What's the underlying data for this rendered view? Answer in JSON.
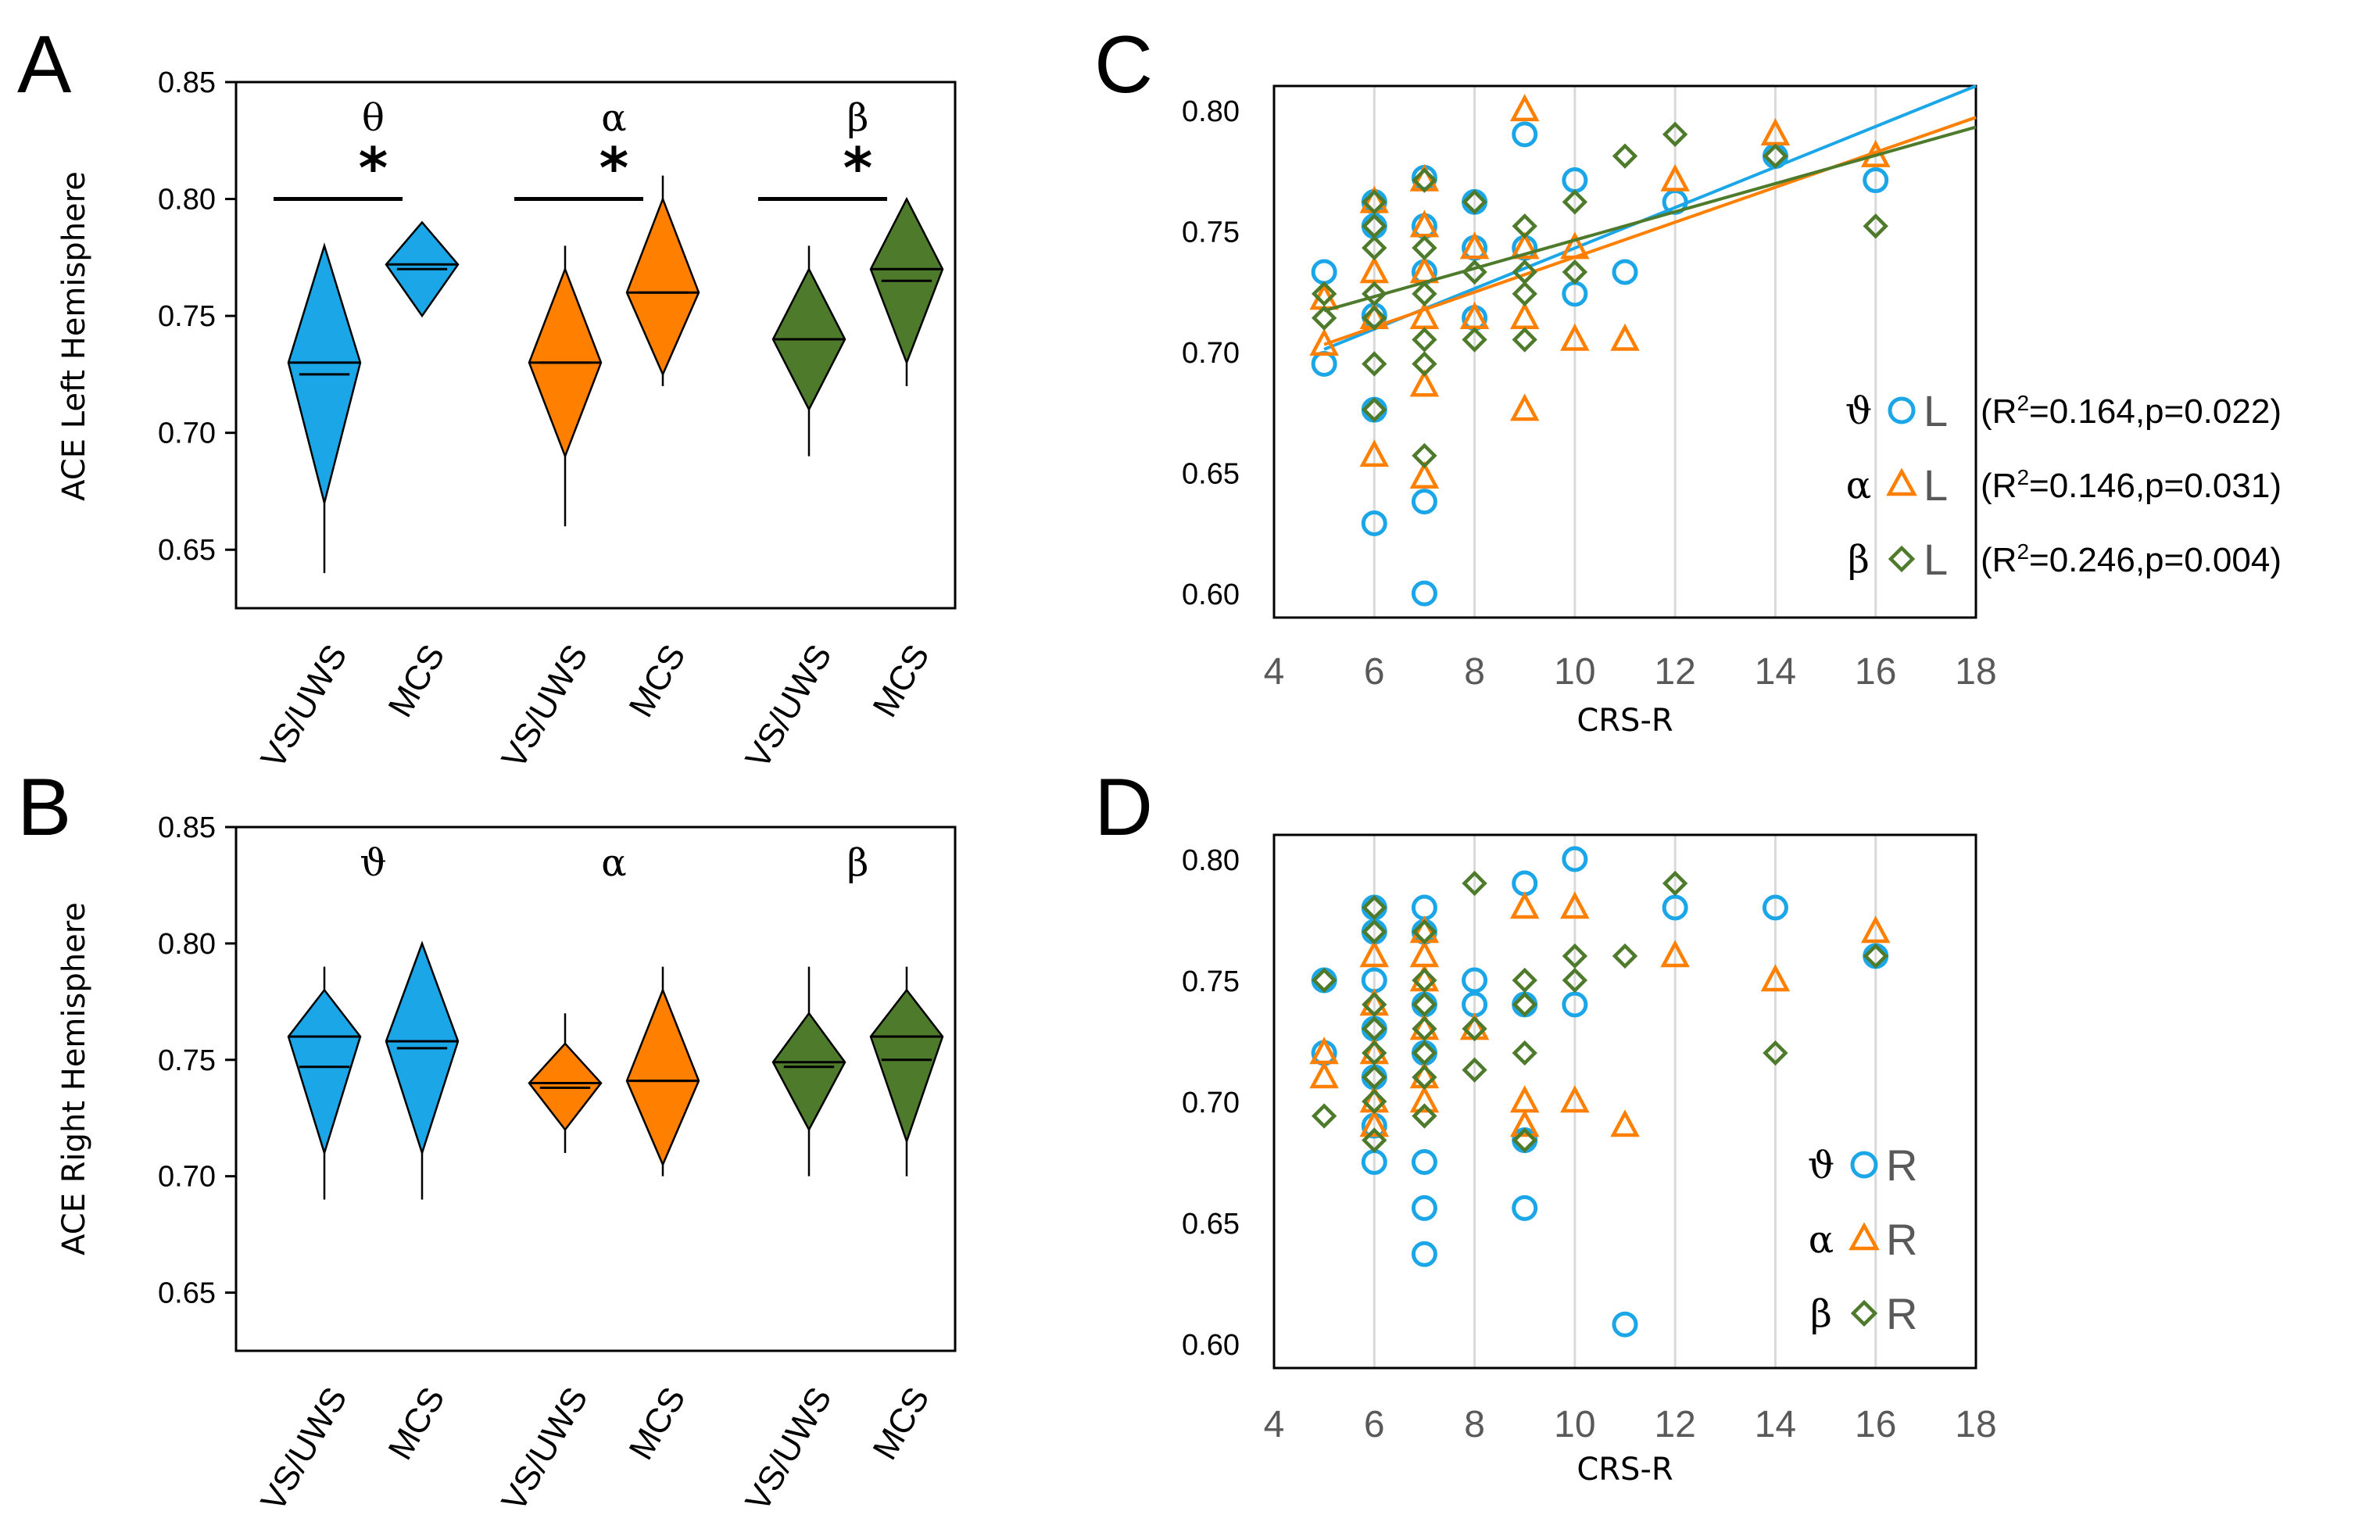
{
  "colors": {
    "theta": "#1BA6E8",
    "alpha": "#FF7F00",
    "beta": "#4D7A2B",
    "grid": "#D9D9D9"
  },
  "chart_data": [
    {
      "panel": "A",
      "type": "violin",
      "ylabel": "ACE Left Hemisphere",
      "ylim": [
        0.625,
        0.85
      ],
      "yticks": [
        0.65,
        0.7,
        0.75,
        0.8,
        0.85
      ],
      "ytick_labels": [
        "0.65",
        "0.70",
        "0.75",
        "0.80",
        "0.85"
      ],
      "groups": [
        {
          "band": "θ",
          "color_key": "theta",
          "significance": "*",
          "cats": [
            {
              "label": "VS/UWS",
              "min": 0.64,
              "q1": 0.67,
              "mean": 0.725,
              "median": 0.73,
              "q3": 0.78,
              "max": 0.78
            },
            {
              "label": "MCS",
              "min": 0.75,
              "q1": 0.75,
              "mean": 0.77,
              "median": 0.772,
              "q3": 0.79,
              "max": 0.79
            }
          ]
        },
        {
          "band": "α",
          "color_key": "alpha",
          "significance": "*",
          "cats": [
            {
              "label": "VS/UWS",
              "min": 0.66,
              "q1": 0.69,
              "mean": 0.73,
              "median": 0.73,
              "q3": 0.77,
              "max": 0.78
            },
            {
              "label": "MCS",
              "min": 0.72,
              "q1": 0.725,
              "mean": 0.76,
              "median": 0.76,
              "q3": 0.8,
              "max": 0.81
            }
          ]
        },
        {
          "band": "β",
          "color_key": "beta",
          "significance": "*",
          "cats": [
            {
              "label": "VS/UWS",
              "min": 0.69,
              "q1": 0.71,
              "mean": 0.74,
              "median": 0.74,
              "q3": 0.77,
              "max": 0.78
            },
            {
              "label": "MCS",
              "min": 0.72,
              "q1": 0.73,
              "mean": 0.765,
              "median": 0.77,
              "q3": 0.8,
              "max": 0.8
            }
          ]
        }
      ]
    },
    {
      "panel": "B",
      "type": "violin",
      "ylabel": "ACE Right Hemisphere",
      "ylim": [
        0.625,
        0.85
      ],
      "yticks": [
        0.65,
        0.7,
        0.75,
        0.8,
        0.85
      ],
      "ytick_labels": [
        "0.65",
        "0.70",
        "0.75",
        "0.80",
        "0.85"
      ],
      "groups": [
        {
          "band": "ϑ",
          "color_key": "theta",
          "cats": [
            {
              "label": "VS/UWS",
              "min": 0.69,
              "q1": 0.71,
              "mean": 0.747,
              "median": 0.76,
              "q3": 0.78,
              "max": 0.79
            },
            {
              "label": "MCS",
              "min": 0.69,
              "q1": 0.71,
              "mean": 0.755,
              "median": 0.758,
              "q3": 0.8,
              "max": 0.8
            }
          ]
        },
        {
          "band": "α",
          "color_key": "alpha",
          "cats": [
            {
              "label": "VS/UWS",
              "min": 0.71,
              "q1": 0.72,
              "mean": 0.738,
              "median": 0.74,
              "q3": 0.757,
              "max": 0.77
            },
            {
              "label": "MCS",
              "min": 0.7,
              "q1": 0.705,
              "mean": 0.741,
              "median": 0.741,
              "q3": 0.78,
              "max": 0.79
            }
          ]
        },
        {
          "band": "β",
          "color_key": "beta",
          "cats": [
            {
              "label": "VS/UWS",
              "min": 0.7,
              "q1": 0.72,
              "mean": 0.747,
              "median": 0.749,
              "q3": 0.77,
              "max": 0.79
            },
            {
              "label": "MCS",
              "min": 0.7,
              "q1": 0.715,
              "mean": 0.75,
              "median": 0.76,
              "q3": 0.78,
              "max": 0.79
            }
          ]
        }
      ]
    },
    {
      "panel": "C",
      "type": "scatter",
      "xlabel": "CRS-R",
      "xlim": [
        4,
        18
      ],
      "ylim": [
        0.59,
        0.81
      ],
      "xticks": [
        4,
        6,
        8,
        10,
        12,
        14,
        16,
        18
      ],
      "xtick_labels": [
        "4",
        "6",
        "8",
        "10",
        "12",
        "14",
        "16",
        "18"
      ],
      "yticks": [
        0.6,
        0.65,
        0.7,
        0.75,
        0.8
      ],
      "ytick_labels": [
        "0.60",
        "0.65",
        "0.70",
        "0.75",
        "0.80"
      ],
      "series": [
        {
          "band": "ϑ",
          "side": "L",
          "color_key": "theta",
          "marker": "circle",
          "stat": "(R²=0.164,p=0.022)",
          "stat_pre": "(R",
          "stat_sup": "2",
          "stat_post": "=0.164,p=0.022)",
          "fit": [
            [
              5,
              0.701
            ],
            [
              18,
              0.81
            ]
          ],
          "points": [
            [
              5,
              0.733
            ],
            [
              5,
              0.695
            ],
            [
              6,
              0.762
            ],
            [
              6,
              0.752
            ],
            [
              6,
              0.715
            ],
            [
              6,
              0.676
            ],
            [
              6,
              0.629
            ],
            [
              7,
              0.772
            ],
            [
              7,
              0.752
            ],
            [
              7,
              0.733
            ],
            [
              7,
              0.638
            ],
            [
              7,
              0.6
            ],
            [
              8,
              0.762
            ],
            [
              8,
              0.743
            ],
            [
              8,
              0.714
            ],
            [
              9,
              0.79
            ],
            [
              9,
              0.743
            ],
            [
              10,
              0.771
            ],
            [
              10,
              0.724
            ],
            [
              11,
              0.733
            ],
            [
              12,
              0.762
            ],
            [
              14,
              0.781
            ],
            [
              16,
              0.771
            ]
          ]
        },
        {
          "band": "α",
          "side": "L",
          "color_key": "alpha",
          "marker": "triangle",
          "stat": "(R²=0.146,p=0.031)",
          "stat_pre": "(R",
          "stat_sup": "2",
          "stat_post": "=0.146,p=0.031)",
          "fit": [
            [
              5,
              0.703
            ],
            [
              18,
              0.797
            ]
          ],
          "points": [
            [
              5,
              0.722
            ],
            [
              5,
              0.703
            ],
            [
              6,
              0.762
            ],
            [
              6,
              0.733
            ],
            [
              6,
              0.714
            ],
            [
              6,
              0.657
            ],
            [
              7,
              0.771
            ],
            [
              7,
              0.752
            ],
            [
              7,
              0.733
            ],
            [
              7,
              0.714
            ],
            [
              7,
              0.686
            ],
            [
              7,
              0.648
            ],
            [
              8,
              0.743
            ],
            [
              8,
              0.714
            ],
            [
              9,
              0.8
            ],
            [
              9,
              0.743
            ],
            [
              9,
              0.714
            ],
            [
              9,
              0.676
            ],
            [
              10,
              0.743
            ],
            [
              10,
              0.705
            ],
            [
              11,
              0.705
            ],
            [
              12,
              0.771
            ],
            [
              14,
              0.79
            ],
            [
              16,
              0.781
            ]
          ]
        },
        {
          "band": "β",
          "side": "L",
          "color_key": "beta",
          "marker": "diamond",
          "stat": "(R²=0.246,p=0.004)",
          "stat_pre": "(R",
          "stat_sup": "2",
          "stat_post": "=0.246,p=0.004)",
          "fit": [
            [
              5,
              0.717
            ],
            [
              18,
              0.793
            ]
          ],
          "points": [
            [
              5,
              0.724
            ],
            [
              5,
              0.714
            ],
            [
              6,
              0.762
            ],
            [
              6,
              0.752
            ],
            [
              6,
              0.743
            ],
            [
              6,
              0.724
            ],
            [
              6,
              0.714
            ],
            [
              6,
              0.695
            ],
            [
              6,
              0.676
            ],
            [
              7,
              0.771
            ],
            [
              7,
              0.743
            ],
            [
              7,
              0.724
            ],
            [
              7,
              0.705
            ],
            [
              7,
              0.695
            ],
            [
              7,
              0.657
            ],
            [
              8,
              0.762
            ],
            [
              8,
              0.733
            ],
            [
              8,
              0.705
            ],
            [
              9,
              0.752
            ],
            [
              9,
              0.733
            ],
            [
              9,
              0.724
            ],
            [
              9,
              0.705
            ],
            [
              10,
              0.762
            ],
            [
              10,
              0.733
            ],
            [
              11,
              0.781
            ],
            [
              12,
              0.79
            ],
            [
              14,
              0.781
            ],
            [
              16,
              0.752
            ]
          ]
        }
      ]
    },
    {
      "panel": "D",
      "type": "scatter",
      "xlabel": "CRS-R",
      "xlim": [
        4,
        18
      ],
      "ylim": [
        0.59,
        0.81
      ],
      "xticks": [
        4,
        6,
        8,
        10,
        12,
        14,
        16,
        18
      ],
      "xtick_labels": [
        "4",
        "6",
        "8",
        "10",
        "12",
        "14",
        "16",
        "18"
      ],
      "yticks": [
        0.6,
        0.65,
        0.7,
        0.75,
        0.8
      ],
      "ytick_labels": [
        "0.60",
        "0.65",
        "0.70",
        "0.75",
        "0.80"
      ],
      "series": [
        {
          "band": "ϑ",
          "side": "R",
          "color_key": "theta",
          "marker": "circle",
          "points": [
            [
              5,
              0.75
            ],
            [
              5,
              0.72
            ],
            [
              6,
              0.78
            ],
            [
              6,
              0.77
            ],
            [
              6,
              0.75
            ],
            [
              6,
              0.73
            ],
            [
              6,
              0.71
            ],
            [
              6,
              0.69
            ],
            [
              6,
              0.675
            ],
            [
              7,
              0.78
            ],
            [
              7,
              0.77
            ],
            [
              7,
              0.74
            ],
            [
              7,
              0.72
            ],
            [
              7,
              0.675
            ],
            [
              7,
              0.656
            ],
            [
              7,
              0.637
            ],
            [
              8,
              0.75
            ],
            [
              8,
              0.74
            ],
            [
              9,
              0.79
            ],
            [
              9,
              0.74
            ],
            [
              9,
              0.684
            ],
            [
              9,
              0.656
            ],
            [
              10,
              0.8
            ],
            [
              10,
              0.74
            ],
            [
              11,
              0.608
            ],
            [
              12,
              0.78
            ],
            [
              14,
              0.78
            ],
            [
              16,
              0.76
            ]
          ]
        },
        {
          "band": "α",
          "side": "R",
          "color_key": "alpha",
          "marker": "triangle",
          "points": [
            [
              5,
              0.72
            ],
            [
              5,
              0.71
            ],
            [
              6,
              0.76
            ],
            [
              6,
              0.74
            ],
            [
              6,
              0.72
            ],
            [
              6,
              0.7
            ],
            [
              6,
              0.69
            ],
            [
              7,
              0.77
            ],
            [
              7,
              0.76
            ],
            [
              7,
              0.75
            ],
            [
              7,
              0.73
            ],
            [
              7,
              0.71
            ],
            [
              7,
              0.7
            ],
            [
              8,
              0.73
            ],
            [
              9,
              0.78
            ],
            [
              9,
              0.7
            ],
            [
              9,
              0.69
            ],
            [
              10,
              0.78
            ],
            [
              10,
              0.7
            ],
            [
              11,
              0.69
            ],
            [
              12,
              0.76
            ],
            [
              14,
              0.75
            ],
            [
              16,
              0.77
            ]
          ]
        },
        {
          "band": "β",
          "side": "R",
          "color_key": "beta",
          "marker": "diamond",
          "points": [
            [
              5,
              0.75
            ],
            [
              5,
              0.694
            ],
            [
              6,
              0.78
            ],
            [
              6,
              0.77
            ],
            [
              6,
              0.74
            ],
            [
              6,
              0.73
            ],
            [
              6,
              0.72
            ],
            [
              6,
              0.71
            ],
            [
              6,
              0.7
            ],
            [
              6,
              0.684
            ],
            [
              7,
              0.77
            ],
            [
              7,
              0.75
            ],
            [
              7,
              0.74
            ],
            [
              7,
              0.73
            ],
            [
              7,
              0.72
            ],
            [
              7,
              0.71
            ],
            [
              7,
              0.694
            ],
            [
              8,
              0.79
            ],
            [
              8,
              0.73
            ],
            [
              8,
              0.713
            ],
            [
              9,
              0.75
            ],
            [
              9,
              0.74
            ],
            [
              9,
              0.72
            ],
            [
              9,
              0.684
            ],
            [
              10,
              0.76
            ],
            [
              10,
              0.75
            ],
            [
              11,
              0.76
            ],
            [
              12,
              0.79
            ],
            [
              14,
              0.72
            ],
            [
              16,
              0.76
            ]
          ]
        }
      ]
    }
  ]
}
